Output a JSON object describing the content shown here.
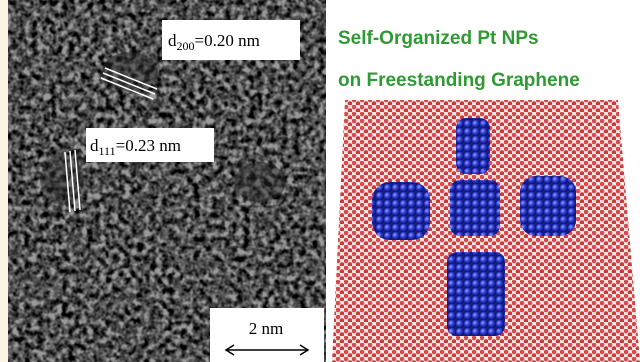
{
  "tem_image": {
    "annotations": [
      {
        "base": "d",
        "subscript": "200",
        "text": "=0.20 nm"
      },
      {
        "base": "d",
        "subscript": "111",
        "text": "=0.23 nm"
      }
    ],
    "scale_bar": "2 nm"
  },
  "title": {
    "line1": "Self-Organized Pt NPs",
    "line2": "on Freestanding Graphene"
  }
}
